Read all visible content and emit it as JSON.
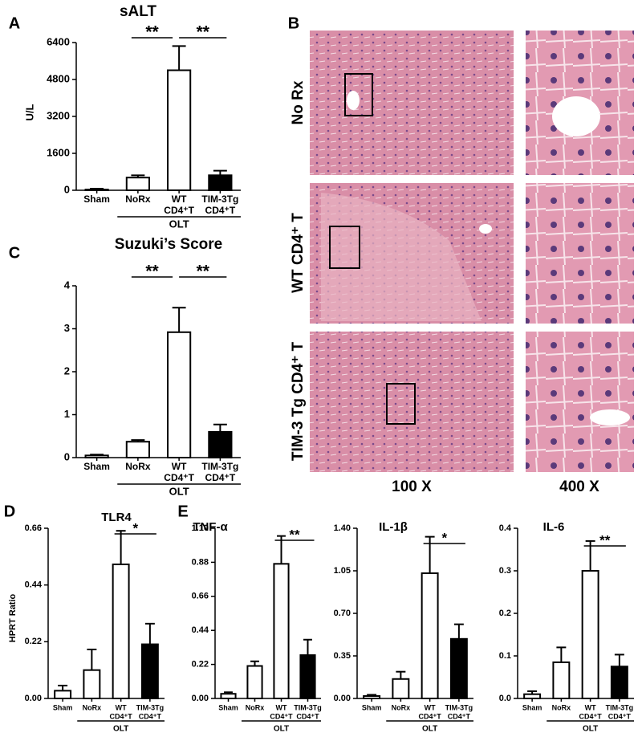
{
  "chart_data": [
    {
      "type": "bar",
      "panel": "A",
      "title": "sALT",
      "y_label": "U/L",
      "categories": [
        [
          "Sham"
        ],
        [
          "NoRx"
        ],
        [
          "WT",
          "CD4⁺T"
        ],
        [
          "TIM-3Tg",
          "CD4⁺T"
        ]
      ],
      "group_label": "OLT",
      "values": [
        30,
        550,
        5200,
        650
      ],
      "errors": [
        40,
        100,
        1050,
        200
      ],
      "colors": [
        "#ffffff",
        "#ffffff",
        "#ffffff",
        "#000000"
      ],
      "ylim": [
        0,
        6400
      ],
      "yticks": [
        0,
        1600,
        3200,
        4800,
        6400
      ],
      "significance": [
        "**",
        "**"
      ]
    },
    {
      "type": "bar",
      "panel": "C",
      "title": "Suzuki’s Score",
      "categories": [
        [
          "Sham"
        ],
        [
          "NoRx"
        ],
        [
          "WT",
          "CD4⁺T"
        ],
        [
          "TIM-3Tg",
          "CD4⁺T"
        ]
      ],
      "group_label": "OLT",
      "values": [
        0.05,
        0.37,
        2.92,
        0.6
      ],
      "errors": [
        0.02,
        0.04,
        0.57,
        0.17
      ],
      "colors": [
        "#ffffff",
        "#ffffff",
        "#ffffff",
        "#000000"
      ],
      "ylim": [
        0,
        4
      ],
      "yticks": [
        0,
        1,
        2,
        3,
        4
      ],
      "significance": [
        "**",
        "**"
      ]
    },
    {
      "type": "bar",
      "panel": "D",
      "title": "TLR4",
      "y_label": "HPRT Ratio",
      "categories": [
        [
          "Sham"
        ],
        [
          "NoRx"
        ],
        [
          "WT",
          "CD4⁺T"
        ],
        [
          "TIM-3Tg",
          "CD4⁺T"
        ]
      ],
      "group_label": "OLT",
      "values": [
        0.03,
        0.11,
        0.52,
        0.21
      ],
      "errors": [
        0.02,
        0.08,
        0.13,
        0.08
      ],
      "colors": [
        "#ffffff",
        "#ffffff",
        "#ffffff",
        "#000000"
      ],
      "ylim": [
        0,
        0.66
      ],
      "yticks": [
        {
          "value": 0,
          "label": "0.00"
        },
        0.22,
        0.44,
        0.66
      ],
      "significance": [
        "*"
      ]
    },
    {
      "type": "bar",
      "panel": "E",
      "title": "TNF-α",
      "categories": [
        [
          "Sham"
        ],
        [
          "NoRx"
        ],
        [
          "WT",
          "CD4⁺T"
        ],
        [
          "TIM-3Tg",
          "CD4⁺T"
        ]
      ],
      "group_label": "OLT",
      "values": [
        0.03,
        0.21,
        0.87,
        0.28
      ],
      "errors": [
        0.01,
        0.03,
        0.18,
        0.1
      ],
      "colors": [
        "#ffffff",
        "#ffffff",
        "#ffffff",
        "#000000"
      ],
      "ylim": [
        0,
        1.1
      ],
      "yticks": [
        {
          "value": 0,
          "label": "0.00"
        },
        0.22,
        0.44,
        0.66,
        0.88,
        {
          "value": 1.1,
          "label": "1.10"
        }
      ],
      "significance": [
        "**"
      ]
    },
    {
      "type": "bar",
      "title": "IL-1β",
      "categories": [
        [
          "Sham"
        ],
        [
          "NoRx"
        ],
        [
          "WT",
          "CD4⁺T"
        ],
        [
          "TIM-3Tg",
          "CD4⁺T"
        ]
      ],
      "group_label": "OLT",
      "values": [
        0.02,
        0.16,
        1.03,
        0.49
      ],
      "errors": [
        0.01,
        0.06,
        0.3,
        0.12
      ],
      "colors": [
        "#ffffff",
        "#ffffff",
        "#ffffff",
        "#000000"
      ],
      "ylim": [
        0,
        1.4
      ],
      "yticks": [
        {
          "value": 0,
          "label": "0.00"
        },
        0.35,
        {
          "value": 0.7,
          "label": "0.70"
        },
        1.05,
        {
          "value": 1.4,
          "label": "1.40"
        }
      ],
      "significance": [
        "*"
      ]
    },
    {
      "type": "bar",
      "title": "IL-6",
      "categories": [
        [
          "Sham"
        ],
        [
          "NoRx"
        ],
        [
          "WT",
          "CD4⁺T"
        ],
        [
          "TIM-3Tg",
          "CD4⁺T"
        ]
      ],
      "group_label": "OLT",
      "values": [
        0.01,
        0.085,
        0.3,
        0.075
      ],
      "errors": [
        0.007,
        0.035,
        0.07,
        0.028
      ],
      "colors": [
        "#ffffff",
        "#ffffff",
        "#ffffff",
        "#000000"
      ],
      "ylim": [
        0,
        0.4
      ],
      "yticks": [
        {
          "value": 0,
          "label": "0.0"
        },
        0.1,
        0.2,
        0.3,
        0.4
      ],
      "significance": [
        "**"
      ]
    }
  ],
  "figure_b": {
    "panel": "B",
    "rows": [
      "No Rx",
      "WT CD4⁺ T",
      "TIM-3 Tg CD4⁺ T"
    ],
    "columns": [
      "100 X",
      "400 X"
    ]
  }
}
